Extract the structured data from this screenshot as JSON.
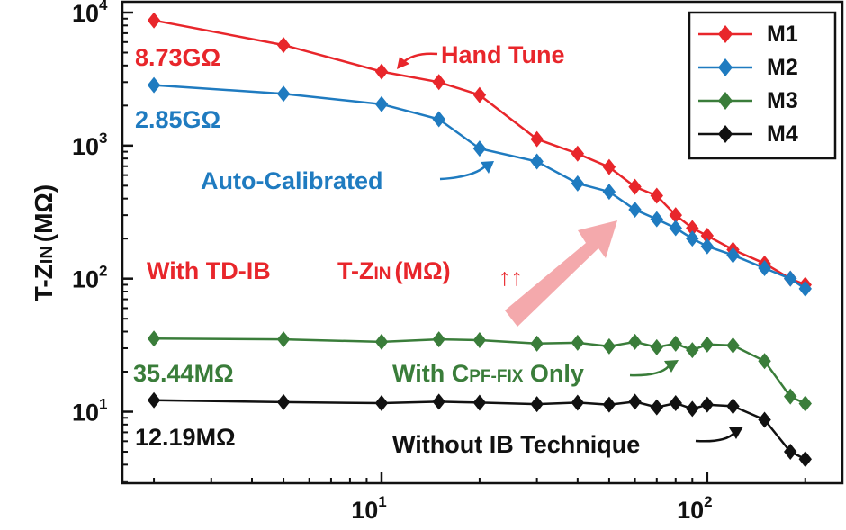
{
  "chart_data": {
    "type": "line",
    "xscale": "log",
    "yscale": "log",
    "xlim": [
      1.6,
      260
    ],
    "ylim": [
      2.9,
      10000
    ],
    "xlabel": "",
    "ylabel": {
      "prefix": "T-Z",
      "sub": "IN",
      "suffix": "(MΩ)"
    },
    "x_ticks": [
      {
        "base": "10",
        "exp": "1",
        "value": 10
      },
      {
        "base": "10",
        "exp": "2",
        "value": 100
      }
    ],
    "y_ticks": [
      {
        "base": "10",
        "exp": "1",
        "value": 10
      },
      {
        "base": "10",
        "exp": "2",
        "value": 100
      },
      {
        "base": "10",
        "exp": "3",
        "value": 1000
      },
      {
        "base": "10",
        "exp": "4",
        "value": 10000
      }
    ],
    "legend": {
      "position": "top-right",
      "entries": [
        "M1",
        "M2",
        "M3",
        "M4"
      ]
    },
    "x": [
      2,
      5,
      10,
      15,
      20,
      30,
      40,
      50,
      60,
      70,
      80,
      90,
      100,
      120,
      150,
      180,
      200
    ],
    "series": [
      {
        "name": "M1",
        "color": "#e8262b",
        "values": [
          8730,
          5700,
          3600,
          3000,
          2400,
          1120,
          870,
          690,
          490,
          420,
          300,
          240,
          210,
          165,
          130,
          100,
          90
        ]
      },
      {
        "name": "M2",
        "color": "#1f7bc0",
        "values": [
          2850,
          2450,
          2050,
          1580,
          950,
          760,
          520,
          450,
          330,
          280,
          240,
          200,
          175,
          150,
          120,
          100,
          84
        ]
      },
      {
        "name": "M3",
        "color": "#3a7d3a",
        "values": [
          35.44,
          35,
          33.5,
          35,
          34.5,
          32.5,
          33,
          31,
          33.5,
          30.5,
          32.5,
          29,
          32,
          31.5,
          24,
          13,
          11.5
        ]
      },
      {
        "name": "M4",
        "color": "#111111",
        "values": [
          12.19,
          11.8,
          11.6,
          11.9,
          11.7,
          11.4,
          11.7,
          11.3,
          11.9,
          10.8,
          11.6,
          10.5,
          11.3,
          11.0,
          8.7,
          5.0,
          4.4
        ]
      }
    ],
    "annotations": {
      "hand_tune": "Hand Tune",
      "auto_calibrated": "Auto-Calibrated",
      "m1_start": "8.73GΩ",
      "m2_start": "2.85GΩ",
      "m3_start": "35.44MΩ",
      "m4_start": "12.19MΩ",
      "with_tdib": "With TD-IB",
      "tzin_prefix": "T-Z",
      "tzin_sub": "IN",
      "tzin_suffix": "(MΩ)",
      "up_arrows": "↑↑",
      "cpf_prefix": "With C",
      "cpf_sub": "PF-FIX",
      "cpf_suffix": " Only",
      "without_ib": "Without IB Technique"
    }
  }
}
